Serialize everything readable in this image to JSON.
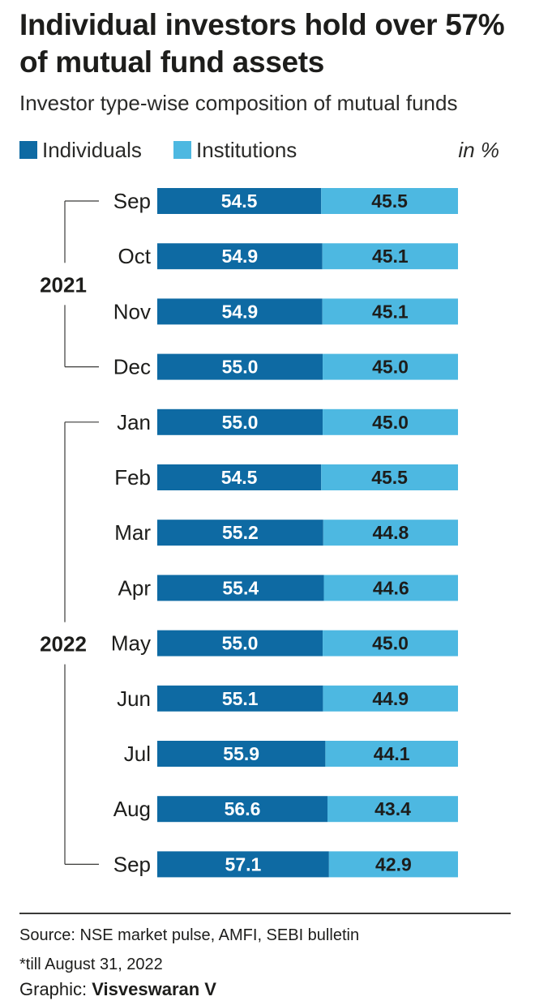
{
  "title": "Individual investors hold over 57% of mutual fund assets",
  "subtitle": "Investor type-wise composition of mutual funds",
  "unit": "in %",
  "colors": {
    "individuals": "#0e6aa3",
    "institutions": "#4db8e1",
    "label_on_dark": "#ffffff",
    "label_on_light": "#1d1d1b"
  },
  "chart_data": {
    "type": "bar",
    "orientation": "horizontal",
    "stacked": true,
    "xlim": [
      0,
      100
    ],
    "categories": [
      "Sep",
      "Oct",
      "Nov",
      "Dec",
      "Jan",
      "Feb",
      "Mar",
      "Apr",
      "May",
      "Jun",
      "Jul",
      "Aug",
      "Sep"
    ],
    "years": [
      {
        "label": "2021",
        "from": 0,
        "to": 3
      },
      {
        "label": "2022",
        "from": 4,
        "to": 12
      }
    ],
    "series": [
      {
        "name": "Individuals",
        "color": "#0e6aa3",
        "values": [
          54.5,
          54.9,
          54.9,
          55.0,
          55.0,
          54.5,
          55.2,
          55.4,
          55.0,
          55.1,
          55.9,
          56.6,
          57.1
        ]
      },
      {
        "name": "Institutions",
        "color": "#4db8e1",
        "values": [
          45.5,
          45.1,
          45.1,
          45.0,
          45.0,
          45.5,
          44.8,
          44.6,
          45.0,
          44.9,
          44.1,
          43.4,
          42.9
        ]
      }
    ],
    "data_labels": [
      [
        "54.5",
        "54.9",
        "54.9",
        "55.0",
        "55.0",
        "54.5",
        "55.2",
        "55.4",
        "55.0",
        "55.1",
        "55.9",
        "56.6",
        "57.1"
      ],
      [
        "45.5",
        "45.1",
        "45.1",
        "45.0",
        "45.0",
        "45.5",
        "44.8",
        "44.6",
        "45.0",
        "44.9",
        "44.1",
        "43.4",
        "42.9"
      ]
    ],
    "legend_position": "top-left",
    "grid": false
  },
  "footer": {
    "source": "Source: NSE market pulse, AMFI, SEBI bulletin",
    "note": "*till August 31, 2022",
    "credit_prefix": "Graphic: ",
    "credit_name": "Visveswaran V"
  }
}
